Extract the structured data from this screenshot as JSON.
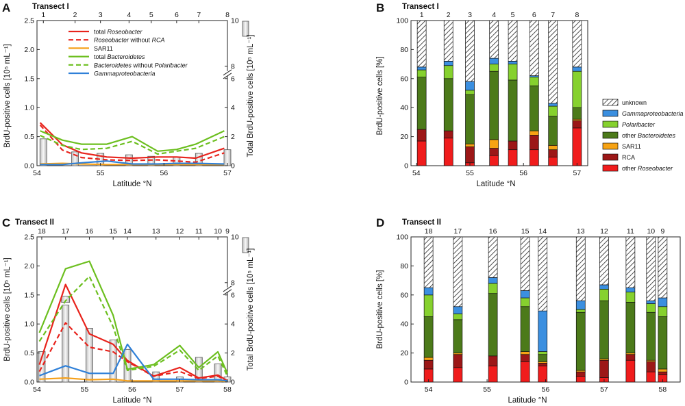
{
  "colors": {
    "roseobacter": "#e8231c",
    "sar11": "#f5a01a",
    "bacteroidetes": "#6cbf1f",
    "gamma": "#2f80d8",
    "unknown_hatch": "#222222",
    "gamma_bar": "#3b8fe0",
    "polaribacter": "#86d12e",
    "other_bacteroidetes": "#4c7a1a",
    "sar11_bar": "#f7a314",
    "rca": "#9c1717",
    "other_roseobacter": "#f01c1c"
  },
  "legend_A": [
    {
      "pre": "total ",
      "ital": "Roseobacter",
      "post": "",
      "key": "roseo_total"
    },
    {
      "pre": "",
      "ital": "Roseobacter",
      "post": " without ",
      "ital2": "RCA",
      "key": "roseo_norca"
    },
    {
      "pre": "SAR11",
      "ital": "",
      "post": "",
      "key": "sar11"
    },
    {
      "pre": "total ",
      "ital": "Bacteroidetes",
      "post": "",
      "key": "bact_total"
    },
    {
      "pre": "",
      "ital": "Bacteroidetes",
      "post": " without ",
      "ital2": "Polaribacter",
      "key": "bact_nopol"
    },
    {
      "pre": "",
      "ital": "Gammaproteobacteria",
      "post": "",
      "key": "gamma"
    }
  ],
  "legend_B": [
    {
      "label": "unknown",
      "italic": false,
      "key": "unknown"
    },
    {
      "label": "Gammaproteobacteria",
      "italic": true,
      "key": "gamma"
    },
    {
      "label": "Polaribacter",
      "italic": true,
      "key": "polaribacter"
    },
    {
      "pre": "other ",
      "label": "Bacteroidetes",
      "italic": true,
      "key": "other_bacteroidetes"
    },
    {
      "label": "SAR11",
      "italic": false,
      "key": "sar11"
    },
    {
      "label": "RCA",
      "italic": false,
      "key": "rca"
    },
    {
      "pre": "other ",
      "label": "Roseobacter",
      "italic": true,
      "key": "other_roseobacter"
    }
  ],
  "chart_data": [
    {
      "panel": "A",
      "type": "line",
      "transect": "Transect I",
      "stations": [
        "1",
        "2",
        "3",
        "4",
        "5",
        "6",
        "7",
        "8"
      ],
      "station_lat": [
        54.1,
        54.6,
        55.0,
        55.45,
        55.8,
        56.2,
        56.55,
        57.0
      ],
      "xlabel": "Latitude °N",
      "xticks": [
        "54",
        "55",
        "56",
        "57"
      ],
      "xlim": [
        54,
        57
      ],
      "ylabel_left": "BrdU-positive cells [10⁵ mL⁻¹]",
      "yticks_left": [
        "0.0",
        "0.5",
        "1.0",
        "1.5",
        "2.0",
        "2.5"
      ],
      "ylim_left": [
        0,
        2.5
      ],
      "ylabel_right": "Total BrdU-positive cells [10⁵ mL⁻¹]",
      "yticks_right_low": [
        "0",
        "2",
        "4",
        "6"
      ],
      "yticks_right_high": [
        "8",
        "10"
      ],
      "right_break": [
        6,
        8
      ],
      "bars_total": [
        1.85,
        0.95,
        0.85,
        0.75,
        0.65,
        0.6,
        0.85,
        1.1
      ],
      "lat_points": [
        54.05,
        54.4,
        54.7,
        55.1,
        55.5,
        55.9,
        56.2,
        56.5,
        56.95
      ],
      "series": [
        {
          "name": "total Roseobacter",
          "key": "roseo_total",
          "values": [
            0.74,
            0.36,
            0.22,
            0.15,
            0.13,
            0.15,
            0.15,
            0.13,
            0.3
          ]
        },
        {
          "name": "Roseobacter without RCA",
          "key": "roseo_norca",
          "values": [
            0.7,
            0.27,
            0.14,
            0.1,
            0.09,
            0.1,
            0.08,
            0.06,
            0.22
          ]
        },
        {
          "name": "SAR11",
          "key": "sar11",
          "values": [
            0.03,
            0.04,
            0.03,
            0.02,
            0.02,
            0.02,
            0.02,
            0.02,
            0.02
          ]
        },
        {
          "name": "total Bacteroidetes",
          "key": "bact_total",
          "values": [
            0.6,
            0.44,
            0.37,
            0.37,
            0.5,
            0.25,
            0.28,
            0.37,
            0.6
          ]
        },
        {
          "name": "Bacteroidetes without Polaribacter",
          "key": "bact_nopol",
          "values": [
            0.52,
            0.35,
            0.28,
            0.3,
            0.42,
            0.2,
            0.25,
            0.3,
            0.5
          ]
        },
        {
          "name": "Gammaproteobacteria",
          "key": "gamma",
          "values": [
            0.02,
            0.02,
            0.05,
            0.08,
            0.03,
            0.03,
            0.04,
            0.04,
            0.03
          ]
        }
      ]
    },
    {
      "panel": "B",
      "type": "bar",
      "stacked": true,
      "transect": "Transect I",
      "stations": [
        "1",
        "2",
        "3",
        "4",
        "5",
        "6",
        "7",
        "8"
      ],
      "station_lat": [
        54.1,
        54.6,
        55.0,
        55.45,
        55.8,
        56.2,
        56.55,
        57.0
      ],
      "xlabel": "Latitude °N",
      "xticks": [
        "54",
        "55",
        "56",
        "57"
      ],
      "xlim": [
        53.9,
        57.2
      ],
      "ylabel": "BrdU-positive cells [%]",
      "yticks": [
        "0",
        "20",
        "40",
        "60",
        "80",
        "100"
      ],
      "ylim": [
        0,
        100
      ],
      "categories": [
        "other_roseobacter",
        "rca",
        "sar11",
        "other_bacteroidetes",
        "polaribacter",
        "gamma",
        "unknown"
      ],
      "stacks": [
        [
          17,
          8,
          0,
          36,
          5,
          2,
          32
        ],
        [
          19,
          5,
          0,
          36,
          9,
          3,
          28
        ],
        [
          2,
          11,
          2,
          34,
          3,
          6,
          42
        ],
        [
          7,
          5,
          6,
          47,
          5,
          4,
          26
        ],
        [
          11,
          6,
          0,
          42,
          11,
          2,
          28
        ],
        [
          11,
          10,
          3,
          31,
          6,
          1,
          38
        ],
        [
          6,
          5,
          3,
          20,
          7,
          2,
          57
        ],
        [
          26,
          5,
          1,
          8,
          25,
          3,
          32
        ]
      ]
    },
    {
      "panel": "C",
      "type": "line",
      "transect": "Transect II",
      "stations": [
        "18",
        "17",
        "16",
        "15",
        "14",
        "13",
        "12",
        "11",
        "10",
        "9"
      ],
      "station_lat": [
        54.1,
        54.6,
        55.1,
        55.6,
        55.9,
        56.5,
        57.0,
        57.4,
        57.8,
        58.0
      ],
      "xlabel": "Latitude °N",
      "xticks": [
        "54",
        "55",
        "56",
        "57",
        "58"
      ],
      "xlim": [
        54,
        58
      ],
      "ylabel_left": "BrdU-positive cells [10⁵ mL⁻¹]",
      "yticks_left": [
        "0.0",
        "0.5",
        "1.0",
        "1.5",
        "2.0",
        "2.5"
      ],
      "ylim_left": [
        0,
        2.5
      ],
      "ylabel_right": "Total BrdU-positive cells [10⁵ mL⁻¹]",
      "yticks_right_low": [
        "0",
        "2",
        "4",
        "6"
      ],
      "yticks_right_high": [
        "8",
        "10"
      ],
      "right_break": [
        6,
        8
      ],
      "bars_total": [
        2.1,
        5.3,
        3.7,
        2.9,
        2.25,
        0.7,
        0.35,
        1.7,
        1.25,
        0.35
      ],
      "bar_break_caps": [
        false,
        true,
        false,
        false,
        false,
        false,
        false,
        false,
        false,
        false
      ],
      "lat_points": [
        54.05,
        54.6,
        55.1,
        55.6,
        55.9,
        56.45,
        57.0,
        57.4,
        57.8,
        58.0
      ],
      "series": [
        {
          "name": "total Roseobacter",
          "key": "roseo_total",
          "values": [
            0.3,
            1.68,
            0.83,
            0.65,
            0.37,
            0.1,
            0.25,
            0.07,
            0.12,
            0.02
          ]
        },
        {
          "name": "Roseobacter without RCA",
          "key": "roseo_norca",
          "values": [
            0.18,
            1.02,
            0.6,
            0.52,
            0.35,
            0.1,
            0.18,
            0.06,
            0.1,
            0.02
          ]
        },
        {
          "name": "SAR11",
          "key": "sar11",
          "values": [
            0.05,
            0.07,
            0.04,
            0.05,
            0.02,
            0.02,
            0.02,
            0.02,
            0.02,
            0.01
          ]
        },
        {
          "name": "total Bacteroidetes",
          "key": "bact_total",
          "values": [
            0.85,
            1.95,
            2.08,
            1.15,
            0.22,
            0.3,
            0.63,
            0.25,
            0.52,
            0.15
          ]
        },
        {
          "name": "Bacteroidetes without Polaribacter",
          "key": "bact_nopol",
          "values": [
            0.7,
            1.4,
            1.82,
            0.95,
            0.2,
            0.27,
            0.55,
            0.2,
            0.45,
            0.1
          ]
        },
        {
          "name": "Gammaproteobacteria",
          "key": "gamma",
          "values": [
            0.11,
            0.28,
            0.15,
            0.15,
            0.65,
            0.05,
            0.05,
            0.04,
            0.04,
            0.02
          ]
        }
      ]
    },
    {
      "panel": "D",
      "type": "bar",
      "stacked": true,
      "transect": "Transect II",
      "stations": [
        "18",
        "17",
        "16",
        "15",
        "14",
        "13",
        "12",
        "11",
        "10",
        "9"
      ],
      "station_lat": [
        54.0,
        54.5,
        55.1,
        55.65,
        55.95,
        56.6,
        57.0,
        57.45,
        57.8,
        58.0
      ],
      "xlabel": "Latitude °N",
      "xticks": [
        "54",
        "55",
        "56",
        "57",
        "58"
      ],
      "xlim": [
        53.7,
        58.3
      ],
      "ylabel": "BrdU-positive cells [%]",
      "yticks": [
        "0",
        "20",
        "40",
        "60",
        "80",
        "100"
      ],
      "ylim": [
        0,
        100
      ],
      "categories": [
        "other_roseobacter",
        "rca",
        "sar11",
        "other_bacteroidetes",
        "polaribacter",
        "gamma",
        "unknown"
      ],
      "stacks": [
        [
          9,
          6,
          2,
          28,
          15,
          5,
          35
        ],
        [
          10,
          9,
          1,
          23,
          4,
          5,
          48
        ],
        [
          11,
          7,
          0,
          43,
          7,
          4,
          28
        ],
        [
          14,
          5,
          2,
          31,
          6,
          5,
          37
        ],
        [
          11,
          2,
          1,
          5,
          2,
          28,
          51
        ],
        [
          4,
          3,
          1,
          40,
          2,
          6,
          44
        ],
        [
          3,
          12,
          1,
          40,
          8,
          3,
          33
        ],
        [
          15,
          4,
          1,
          35,
          7,
          3,
          35
        ],
        [
          7,
          7,
          1,
          33,
          6,
          2,
          44
        ],
        [
          5,
          2,
          2,
          36,
          7,
          6,
          42
        ]
      ]
    }
  ]
}
